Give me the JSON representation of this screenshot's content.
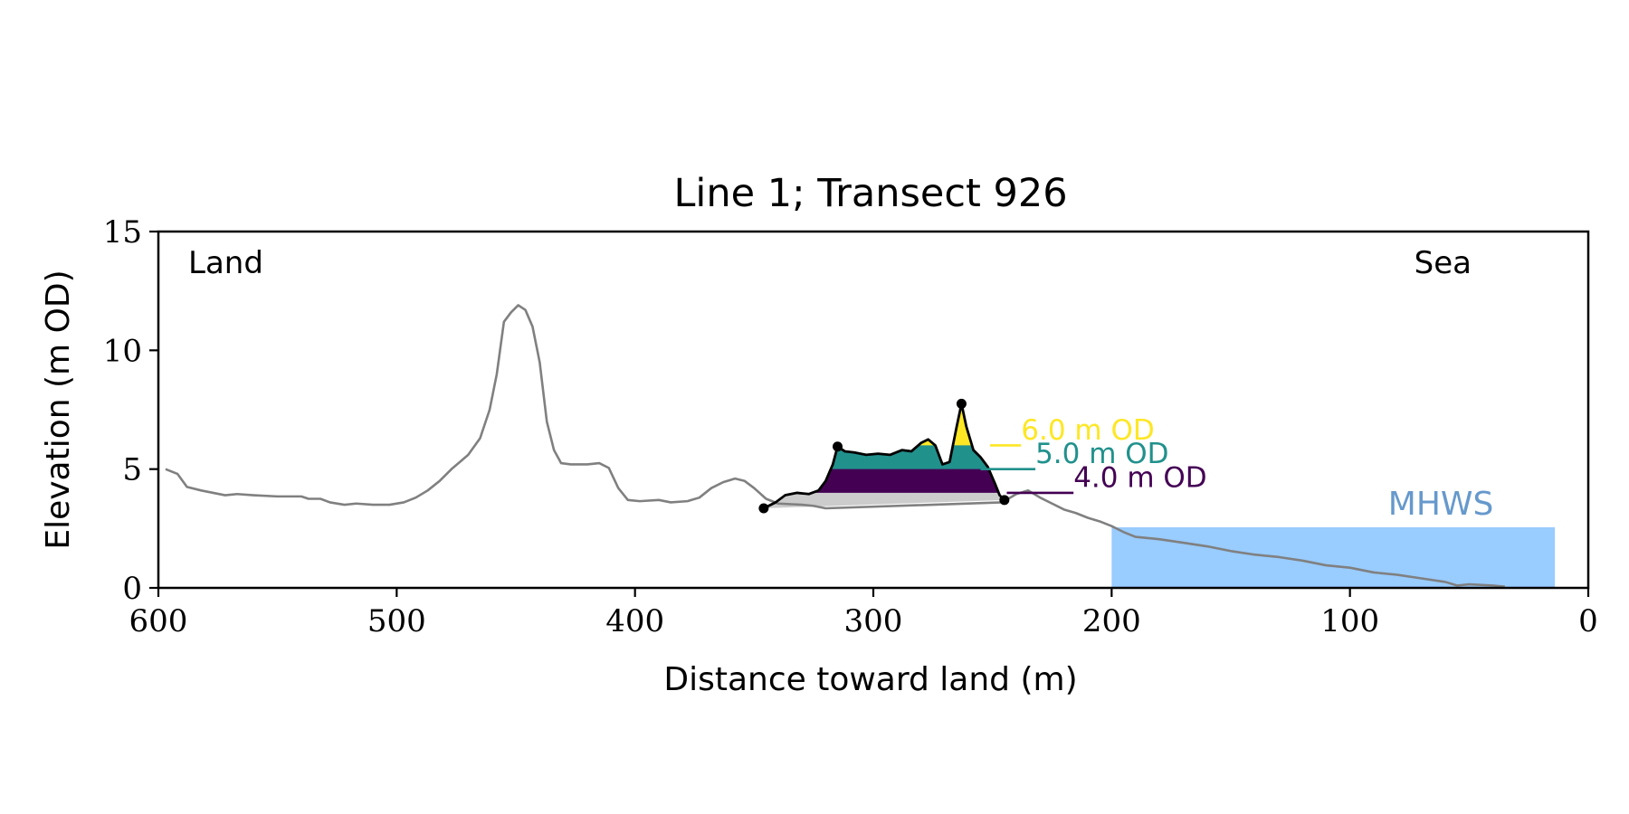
{
  "chart_data": {
    "type": "line",
    "title": "Line 1; Transect 926",
    "xlabel": "Distance toward land (m)",
    "ylabel": "Elevation (m OD)",
    "xlim": [
      600,
      0
    ],
    "ylim": [
      0,
      15
    ],
    "x_ticks": [
      "600",
      "500",
      "400",
      "300",
      "200",
      "100",
      "0"
    ],
    "y_ticks": [
      "0",
      "5",
      "10",
      "15"
    ],
    "corner_labels": {
      "left": "Land",
      "right": "Sea"
    },
    "grid": false,
    "mhws": {
      "label": "MHWS",
      "elevation": 2.55,
      "x_start": 200,
      "x_end": 14,
      "color": "#99ccff",
      "label_color": "#6699cc"
    },
    "profile": {
      "name": "",
      "color": "#808080",
      "points": [
        [
          597,
          5.0
        ],
        [
          592,
          4.8
        ],
        [
          588,
          4.25
        ],
        [
          582,
          4.1
        ],
        [
          577,
          4.0
        ],
        [
          572,
          3.9
        ],
        [
          567,
          3.95
        ],
        [
          560,
          3.9
        ],
        [
          550,
          3.85
        ],
        [
          540,
          3.85
        ],
        [
          537,
          3.75
        ],
        [
          532,
          3.75
        ],
        [
          528,
          3.6
        ],
        [
          522,
          3.5
        ],
        [
          517,
          3.55
        ],
        [
          510,
          3.5
        ],
        [
          503,
          3.5
        ],
        [
          497,
          3.6
        ],
        [
          492,
          3.8
        ],
        [
          487,
          4.1
        ],
        [
          482,
          4.5
        ],
        [
          477,
          5.0
        ],
        [
          470,
          5.6
        ],
        [
          465,
          6.3
        ],
        [
          461,
          7.5
        ],
        [
          458,
          9.0
        ],
        [
          455,
          11.2
        ],
        [
          452,
          11.6
        ],
        [
          449,
          11.9
        ],
        [
          446,
          11.7
        ],
        [
          443,
          11.0
        ],
        [
          440,
          9.5
        ],
        [
          437,
          7.0
        ],
        [
          434,
          5.8
        ],
        [
          431,
          5.25
        ],
        [
          427,
          5.2
        ],
        [
          420,
          5.2
        ],
        [
          415,
          5.25
        ],
        [
          411,
          5.05
        ],
        [
          407,
          4.2
        ],
        [
          403,
          3.7
        ],
        [
          398,
          3.65
        ],
        [
          390,
          3.7
        ],
        [
          385,
          3.6
        ],
        [
          378,
          3.65
        ],
        [
          373,
          3.8
        ],
        [
          368,
          4.2
        ],
        [
          363,
          4.45
        ],
        [
          358,
          4.6
        ],
        [
          354,
          4.5
        ],
        [
          350,
          4.2
        ],
        [
          345,
          3.75
        ],
        [
          340,
          3.55
        ],
        [
          330,
          3.5
        ],
        [
          325,
          3.45
        ],
        [
          320,
          3.35
        ],
        [
          246,
          3.6
        ],
        [
          240,
          3.95
        ],
        [
          235,
          4.1
        ],
        [
          230,
          3.8
        ],
        [
          225,
          3.55
        ],
        [
          220,
          3.3
        ],
        [
          215,
          3.15
        ],
        [
          210,
          2.95
        ],
        [
          205,
          2.8
        ],
        [
          200,
          2.6
        ],
        [
          195,
          2.35
        ],
        [
          190,
          2.15
        ],
        [
          180,
          2.05
        ],
        [
          170,
          1.9
        ],
        [
          160,
          1.75
        ],
        [
          150,
          1.55
        ],
        [
          140,
          1.4
        ],
        [
          130,
          1.3
        ],
        [
          120,
          1.15
        ],
        [
          110,
          0.95
        ],
        [
          100,
          0.85
        ],
        [
          90,
          0.65
        ],
        [
          80,
          0.55
        ],
        [
          70,
          0.4
        ],
        [
          60,
          0.25
        ],
        [
          55,
          0.1
        ],
        [
          50,
          0.15
        ],
        [
          40,
          0.1
        ],
        [
          35,
          0.05
        ]
      ]
    },
    "dune": {
      "color": "#000000",
      "points": [
        [
          346,
          3.35
        ],
        [
          341,
          3.6
        ],
        [
          337,
          3.9
        ],
        [
          332,
          4.0
        ],
        [
          327,
          3.95
        ],
        [
          323,
          4.1
        ],
        [
          320,
          4.5
        ],
        [
          317,
          5.2
        ],
        [
          315,
          5.95
        ],
        [
          312,
          5.75
        ],
        [
          308,
          5.7
        ],
        [
          303,
          5.6
        ],
        [
          298,
          5.65
        ],
        [
          293,
          5.6
        ],
        [
          288,
          5.8
        ],
        [
          284,
          5.75
        ],
        [
          280,
          6.1
        ],
        [
          277,
          6.25
        ],
        [
          274,
          6.0
        ],
        [
          271,
          5.2
        ],
        [
          268,
          5.3
        ],
        [
          265,
          6.8
        ],
        [
          263,
          7.75
        ],
        [
          261,
          6.8
        ],
        [
          258,
          5.8
        ],
        [
          255,
          5.5
        ],
        [
          252,
          5.1
        ],
        [
          249,
          4.4
        ],
        [
          247,
          3.9
        ],
        [
          245,
          3.7
        ]
      ],
      "markers": [
        [
          346,
          3.35
        ],
        [
          315,
          5.95
        ],
        [
          263,
          7.75
        ],
        [
          245,
          3.7
        ]
      ],
      "base_fill": "#cccccc"
    },
    "levels": [
      {
        "label": "6.0 m OD",
        "value": 6.0,
        "color": "#fde725"
      },
      {
        "label": "5.0 m OD",
        "value": 5.0,
        "color": "#21918c"
      },
      {
        "label": "4.0 m OD",
        "value": 4.0,
        "color": "#440154"
      }
    ]
  }
}
